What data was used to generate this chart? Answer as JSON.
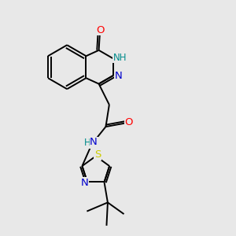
{
  "bg_color": "#e8e8e8",
  "bond_color": "#000000",
  "atom_colors": {
    "O": "#ff0000",
    "N": "#0000cd",
    "S": "#cccc00",
    "H": "#008b8b",
    "C": "#000000"
  },
  "font_size": 8.5,
  "line_width": 1.4
}
